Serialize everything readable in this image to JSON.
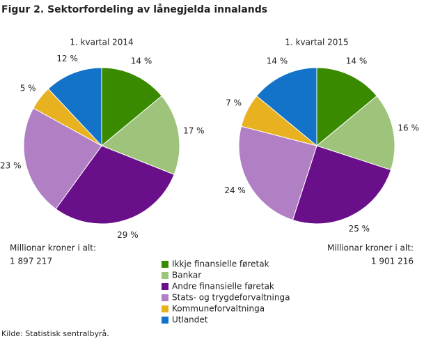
{
  "title": "Figur 2. Sektorfordeling av lånegjelda innalands",
  "source": "Kilde: Statistisk sentralbyrå.",
  "legend": {
    "labels": [
      "Ikkje finansielle føretak",
      "Bankar",
      "Andre finansielle føretak",
      "Stats- og trygdeforvaltninga",
      "Kommuneforvaltninga",
      "Utlandet"
    ],
    "colors": [
      "#3a8a00",
      "#9dc47a",
      "#6a0f8a",
      "#b07fc4",
      "#e8b11f",
      "#1273c9"
    ]
  },
  "chart_data": [
    {
      "type": "pie",
      "title": "1. kvartal 2014",
      "values": [
        14,
        17,
        29,
        23,
        5,
        12
      ],
      "value_labels": [
        "14 %",
        "17 %",
        "29 %",
        "23 %",
        "5 %",
        "12 %"
      ],
      "total_title": "Millionar kroner i alt:",
      "total": {
        "value": 1897217,
        "label": "1 897 217"
      }
    },
    {
      "type": "pie",
      "title": "1. kvartal 2015",
      "values": [
        14,
        16,
        25,
        24,
        7,
        14
      ],
      "value_labels": [
        "14 %",
        "16 %",
        "25 %",
        "24 %",
        "7 %",
        "14 %"
      ],
      "total_title": "Millionar kroner i alt:",
      "total": {
        "value": 1901216,
        "label": "1 901 216"
      }
    }
  ]
}
